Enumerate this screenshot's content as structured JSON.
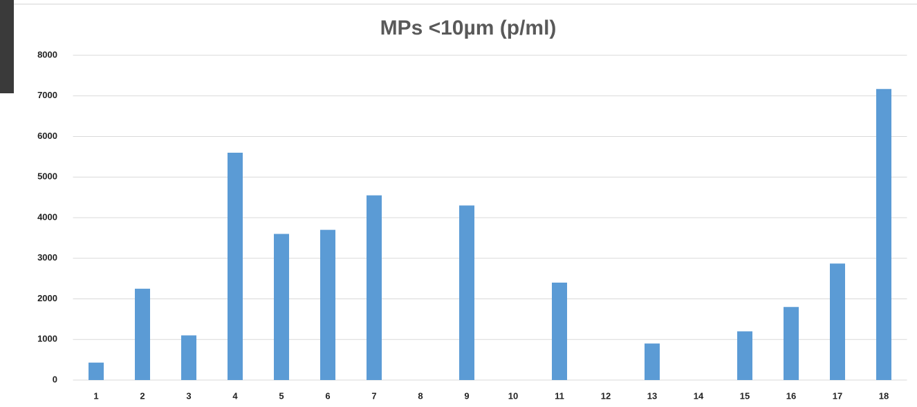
{
  "chart_data": {
    "type": "bar",
    "title": "MPs <10µm (p/ml)",
    "categories": [
      "1",
      "2",
      "3",
      "4",
      "5",
      "6",
      "7",
      "8",
      "9",
      "10",
      "11",
      "12",
      "13",
      "14",
      "15",
      "16",
      "17",
      "18"
    ],
    "values": [
      430,
      2250,
      1100,
      5600,
      3600,
      3700,
      4550,
      0,
      4300,
      0,
      2400,
      0,
      900,
      0,
      1200,
      1800,
      2870,
      7170
    ],
    "color": "#5b9bd5",
    "ylim": [
      0,
      8000
    ],
    "yticks": [
      0,
      1000,
      2000,
      3000,
      4000,
      5000,
      6000,
      7000,
      8000
    ],
    "grid": true
  }
}
